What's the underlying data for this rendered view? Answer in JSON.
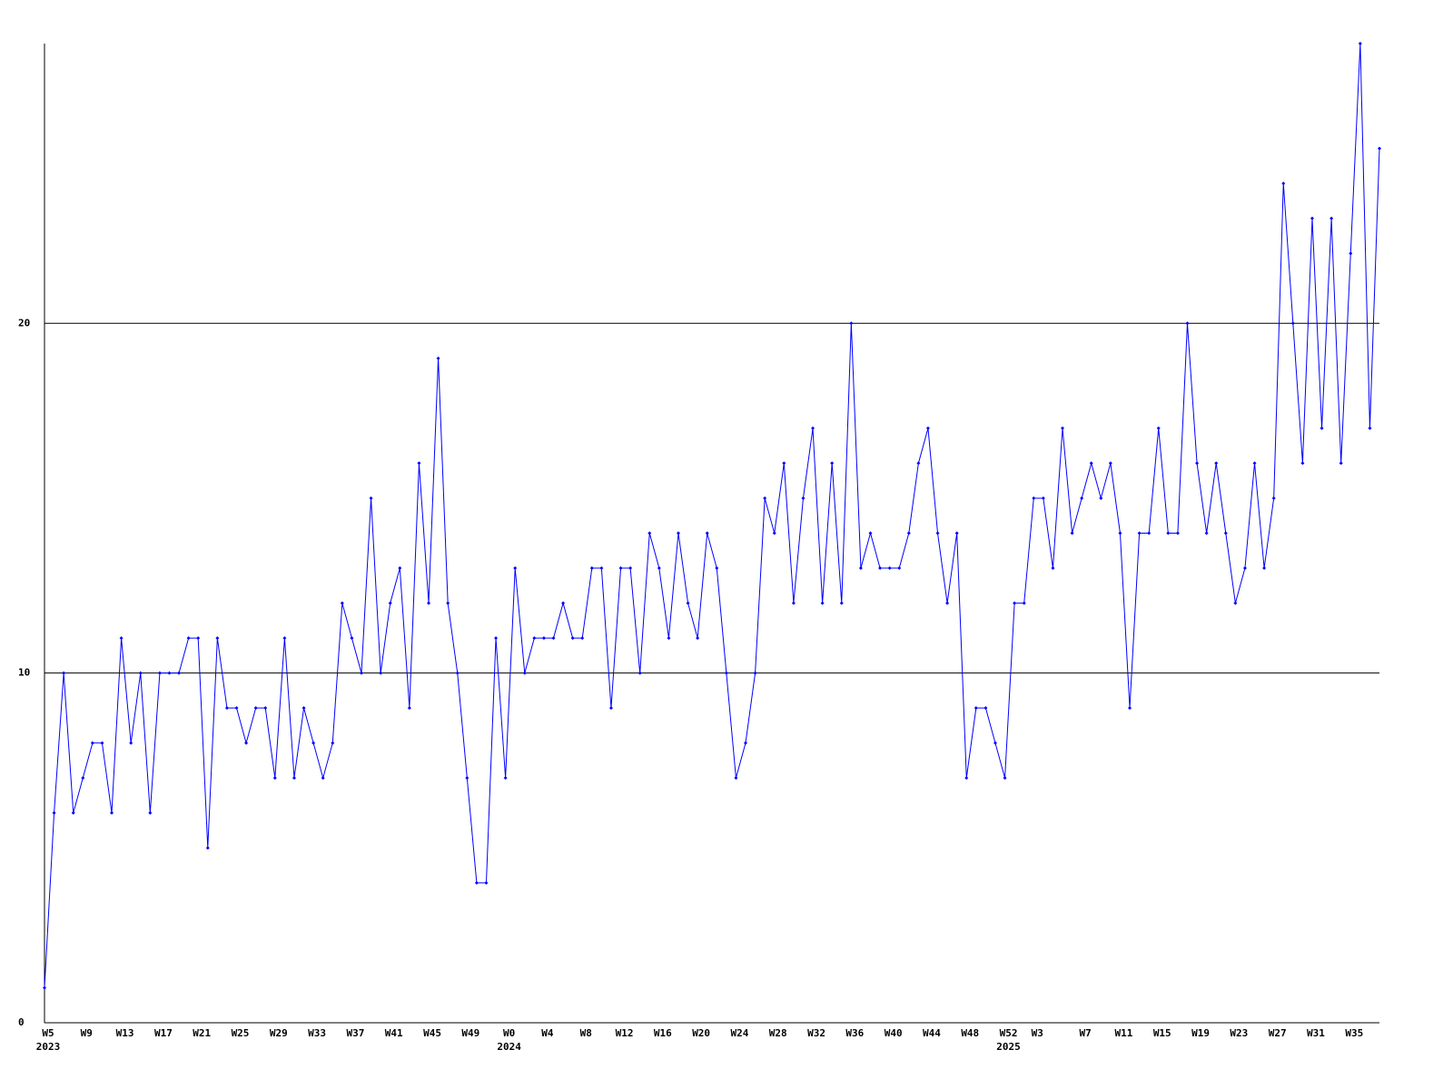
{
  "chart_data": {
    "type": "line",
    "categories": [
      "W5",
      null,
      null,
      null,
      "W9",
      null,
      null,
      null,
      "W13",
      null,
      null,
      null,
      "W17",
      null,
      null,
      null,
      "W21",
      null,
      null,
      null,
      "W25",
      null,
      null,
      null,
      "W29",
      null,
      null,
      null,
      "W33",
      null,
      null,
      null,
      "W37",
      null,
      null,
      null,
      "W41",
      null,
      null,
      null,
      "W45",
      null,
      null,
      null,
      "W49",
      null,
      null,
      null,
      "W0",
      null,
      null,
      null,
      "W4",
      null,
      null,
      null,
      "W8",
      null,
      null,
      null,
      "W12",
      null,
      null,
      null,
      "W16",
      null,
      null,
      null,
      "W20",
      null,
      null,
      null,
      "W24",
      null,
      null,
      null,
      "W28",
      null,
      null,
      null,
      "W32",
      null,
      null,
      null,
      "W36",
      null,
      null,
      null,
      "W40",
      null,
      null,
      null,
      "W44",
      null,
      null,
      null,
      "W48",
      null,
      null,
      null,
      "W52",
      null,
      null,
      "W3",
      null,
      null,
      null,
      null,
      "W7",
      null,
      null,
      null,
      "W11",
      null,
      null,
      null,
      "W15",
      null,
      null,
      null,
      "W19",
      null,
      null,
      null,
      "W23",
      null,
      null,
      null,
      "W27",
      null,
      null,
      null,
      "W31",
      null,
      null,
      null,
      "W35",
      null,
      null,
      null
    ],
    "year_labels": [
      "2023",
      null,
      null,
      null,
      null,
      null,
      null,
      null,
      null,
      null,
      null,
      null,
      null,
      null,
      null,
      null,
      null,
      null,
      null,
      null,
      null,
      null,
      null,
      null,
      null,
      null,
      null,
      null,
      null,
      null,
      null,
      null,
      null,
      null,
      null,
      null,
      null,
      null,
      null,
      null,
      null,
      null,
      null,
      null,
      null,
      null,
      null,
      null,
      "2024",
      null,
      null,
      null,
      null,
      null,
      null,
      null,
      null,
      null,
      null,
      null,
      null,
      null,
      null,
      null,
      null,
      null,
      null,
      null,
      null,
      null,
      null,
      null,
      null,
      null,
      null,
      null,
      null,
      null,
      null,
      null,
      null,
      null,
      null,
      null,
      null,
      null,
      null,
      null,
      null,
      null,
      null,
      null,
      null,
      null,
      null,
      null,
      null,
      null,
      null,
      null,
      "2025",
      null,
      null,
      null,
      null,
      null,
      null,
      null,
      null,
      null,
      null,
      null,
      null,
      null,
      null,
      null,
      null,
      null,
      null,
      null,
      null,
      null,
      null,
      null,
      null,
      null,
      null,
      null,
      null,
      null,
      null,
      null,
      null,
      null,
      null,
      null,
      null,
      null,
      null,
      null
    ],
    "values": [
      1,
      6,
      10,
      6,
      7,
      8,
      8,
      6,
      11,
      8,
      10,
      6,
      10,
      10,
      10,
      11,
      11,
      5,
      11,
      9,
      9,
      8,
      9,
      9,
      7,
      11,
      7,
      9,
      8,
      7,
      8,
      12,
      11,
      10,
      15,
      10,
      12,
      13,
      9,
      16,
      12,
      19,
      12,
      10,
      7,
      4,
      4,
      11,
      7,
      13,
      10,
      11,
      11,
      11,
      12,
      11,
      11,
      13,
      13,
      9,
      13,
      13,
      10,
      14,
      13,
      11,
      14,
      12,
      11,
      14,
      13,
      10,
      7,
      8,
      10,
      15,
      14,
      16,
      12,
      15,
      17,
      12,
      16,
      12,
      20,
      13,
      14,
      13,
      13,
      13,
      14,
      16,
      17,
      14,
      12,
      14,
      7,
      9,
      9,
      8,
      7,
      12,
      12,
      15,
      15,
      13,
      17,
      14,
      15,
      16,
      15,
      16,
      14,
      9,
      14,
      14,
      17,
      14,
      14,
      20,
      16,
      14,
      16,
      14,
      12,
      13,
      16,
      13,
      15,
      24,
      20,
      16,
      23,
      17,
      23,
      16,
      22,
      28,
      17,
      25
    ],
    "color": "#0000ff",
    "ylim": [
      0,
      28
    ],
    "yticks": [
      0,
      10,
      20
    ],
    "grid": true
  }
}
